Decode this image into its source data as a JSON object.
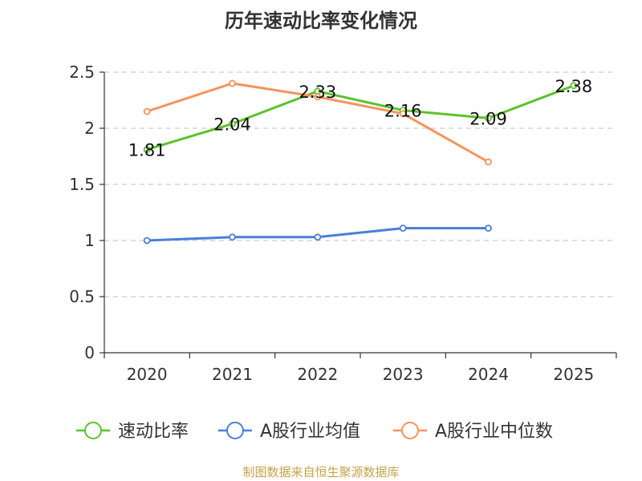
{
  "chart_data": {
    "type": "line",
    "title": "历年速动比率变化情况",
    "categories": [
      "2020",
      "2021",
      "2022",
      "2023",
      "2024",
      "2025"
    ],
    "xlabel": "",
    "ylabel": "",
    "ylim": [
      0,
      2.5
    ],
    "yticks": [
      0,
      0.5,
      1,
      1.5,
      2,
      2.5
    ],
    "ytick_labels": [
      "0",
      "0.5",
      "1",
      "1.5",
      "2",
      "2.5"
    ],
    "grid": "horizontal dashed",
    "legend_position": "bottom",
    "series": [
      {
        "name": "速动比率",
        "color": "#5cc22c",
        "values": [
          1.81,
          2.04,
          2.33,
          2.16,
          2.09,
          2.38
        ],
        "labels": [
          "1.81",
          "2.04",
          "2.33",
          "2.16",
          "2.09",
          "2.38"
        ]
      },
      {
        "name": "A股行业均值",
        "color": "#4a7fd8",
        "values": [
          1.0,
          1.03,
          1.03,
          1.11,
          1.11,
          null
        ]
      },
      {
        "name": "A股行业中位数",
        "color": "#f5935c",
        "values": [
          2.15,
          2.4,
          2.28,
          2.13,
          1.7,
          null
        ]
      }
    ]
  },
  "source": "制图数据来自恒生聚源数据库",
  "colors": {
    "title": "#333333",
    "axis": "#333333",
    "grid": "#cccccc",
    "tick_label": "#333333",
    "source": "#c8a24a"
  }
}
